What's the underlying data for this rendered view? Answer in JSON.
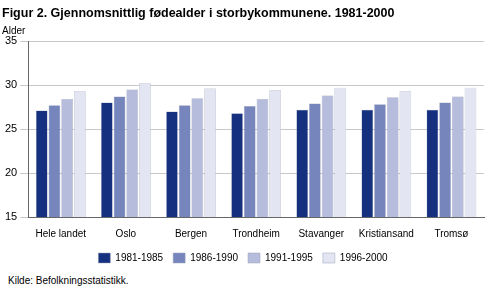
{
  "chart_data": {
    "type": "bar",
    "title": "Figur 2. Gjennomsnittlig fødealder i storbykommunene. 1981-2000",
    "y_label": "Alder",
    "source": "Kilde: Befolkningsstatistikk.",
    "categories": [
      "Hele landet",
      "Oslo",
      "Bergen",
      "Trondheim",
      "Stavanger",
      "Kristiansand",
      "Tromsø"
    ],
    "series": [
      {
        "name": "1981-1985",
        "color": "#14307f",
        "values": [
          27.1,
          28.0,
          27.0,
          26.8,
          27.2,
          27.2,
          27.2
        ]
      },
      {
        "name": "1986-1990",
        "color": "#7686bd",
        "values": [
          27.7,
          28.7,
          27.7,
          27.6,
          27.9,
          27.8,
          28.0
        ]
      },
      {
        "name": "1991-1995",
        "color": "#b6bcdc",
        "values": [
          28.4,
          29.5,
          28.5,
          28.4,
          28.8,
          28.6,
          28.7
        ]
      },
      {
        "name": "1996-2000",
        "color": "#e3e5f2",
        "values": [
          29.3,
          30.2,
          29.6,
          29.4,
          29.7,
          29.3,
          29.7
        ]
      }
    ],
    "ylim": [
      15,
      35
    ],
    "yticks": [
      15,
      20,
      25,
      30,
      35
    ],
    "grid": true,
    "legend": "bottom"
  }
}
